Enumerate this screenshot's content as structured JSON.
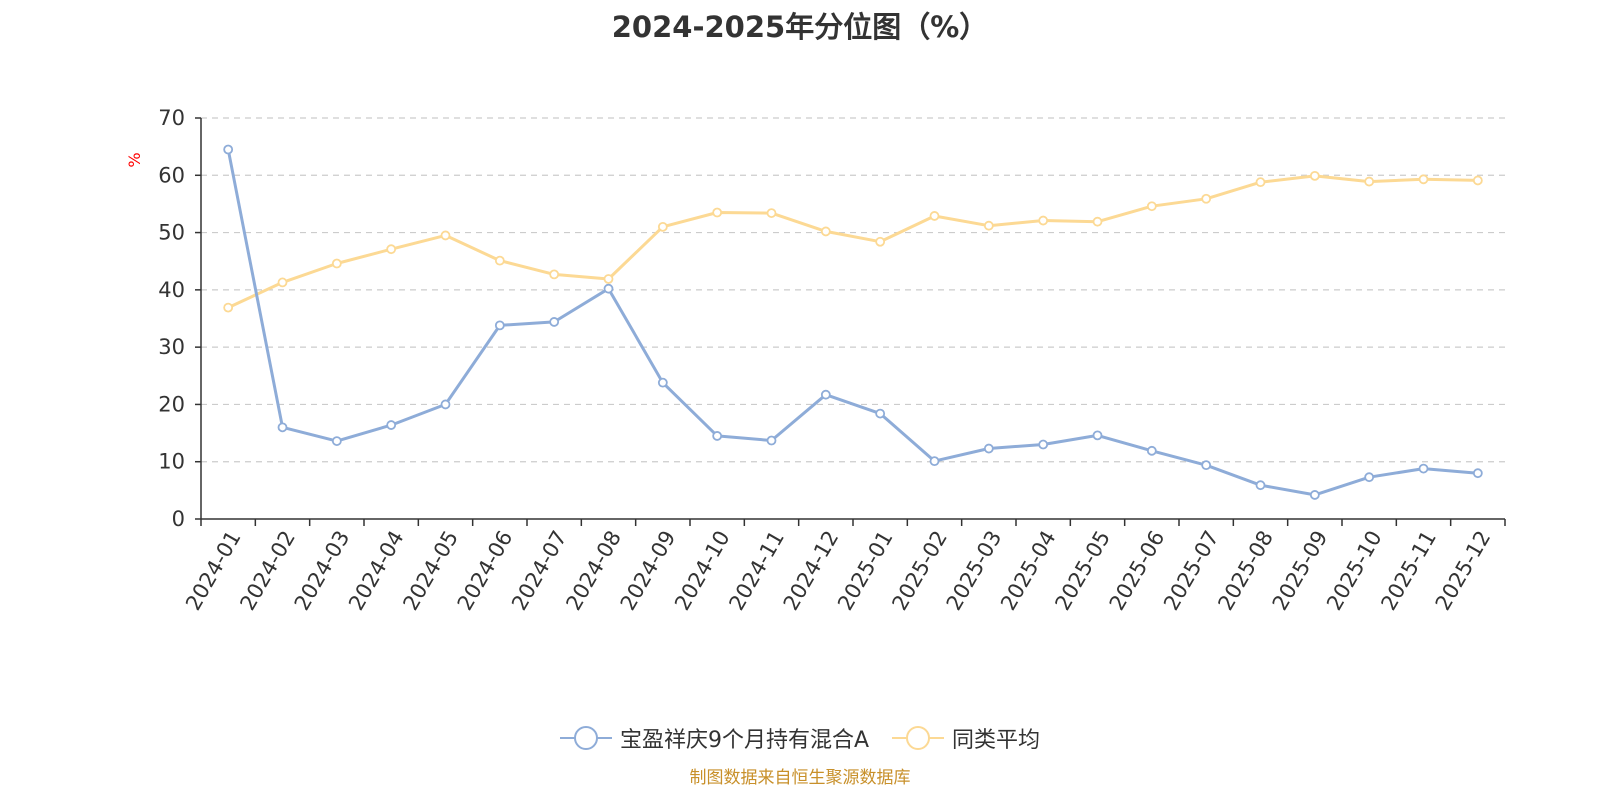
{
  "chart_data": {
    "type": "line",
    "title": "2024-2025年分位图（%）",
    "ylabel": "%",
    "xlabel": "",
    "ylim": [
      0,
      70
    ],
    "yticks": [
      0,
      10,
      20,
      30,
      40,
      50,
      60,
      70
    ],
    "grid": true,
    "legend_position": "bottom-center",
    "categories": [
      "2024-01",
      "2024-02",
      "2024-03",
      "2024-04",
      "2024-05",
      "2024-06",
      "2024-07",
      "2024-08",
      "2024-09",
      "2024-10",
      "2024-11",
      "2024-12",
      "2025-01",
      "2025-02",
      "2025-03",
      "2025-04",
      "2025-05",
      "2025-06",
      "2025-07",
      "2025-08",
      "2025-09",
      "2025-10",
      "2025-11",
      "2025-12"
    ],
    "series": [
      {
        "name": "宝盈祥庆9个月持有混合A",
        "color": "#8eacd8",
        "values": [
          64.5,
          16.0,
          13.6,
          16.4,
          20.0,
          33.8,
          34.4,
          40.2,
          23.8,
          14.5,
          13.7,
          21.7,
          18.4,
          10.1,
          12.3,
          13.0,
          14.6,
          11.9,
          9.4,
          5.9,
          4.2,
          7.3,
          8.8,
          8.0
        ]
      },
      {
        "name": "同类平均",
        "color": "#fcd994",
        "values": [
          36.9,
          41.3,
          44.6,
          47.1,
          49.5,
          45.1,
          42.7,
          41.9,
          51.0,
          53.5,
          53.4,
          50.2,
          48.4,
          52.9,
          51.2,
          52.1,
          51.9,
          54.6,
          55.9,
          58.8,
          59.9,
          58.9,
          59.3,
          59.1
        ]
      }
    ]
  },
  "source_text": "制图数据来自恒生聚源数据库"
}
